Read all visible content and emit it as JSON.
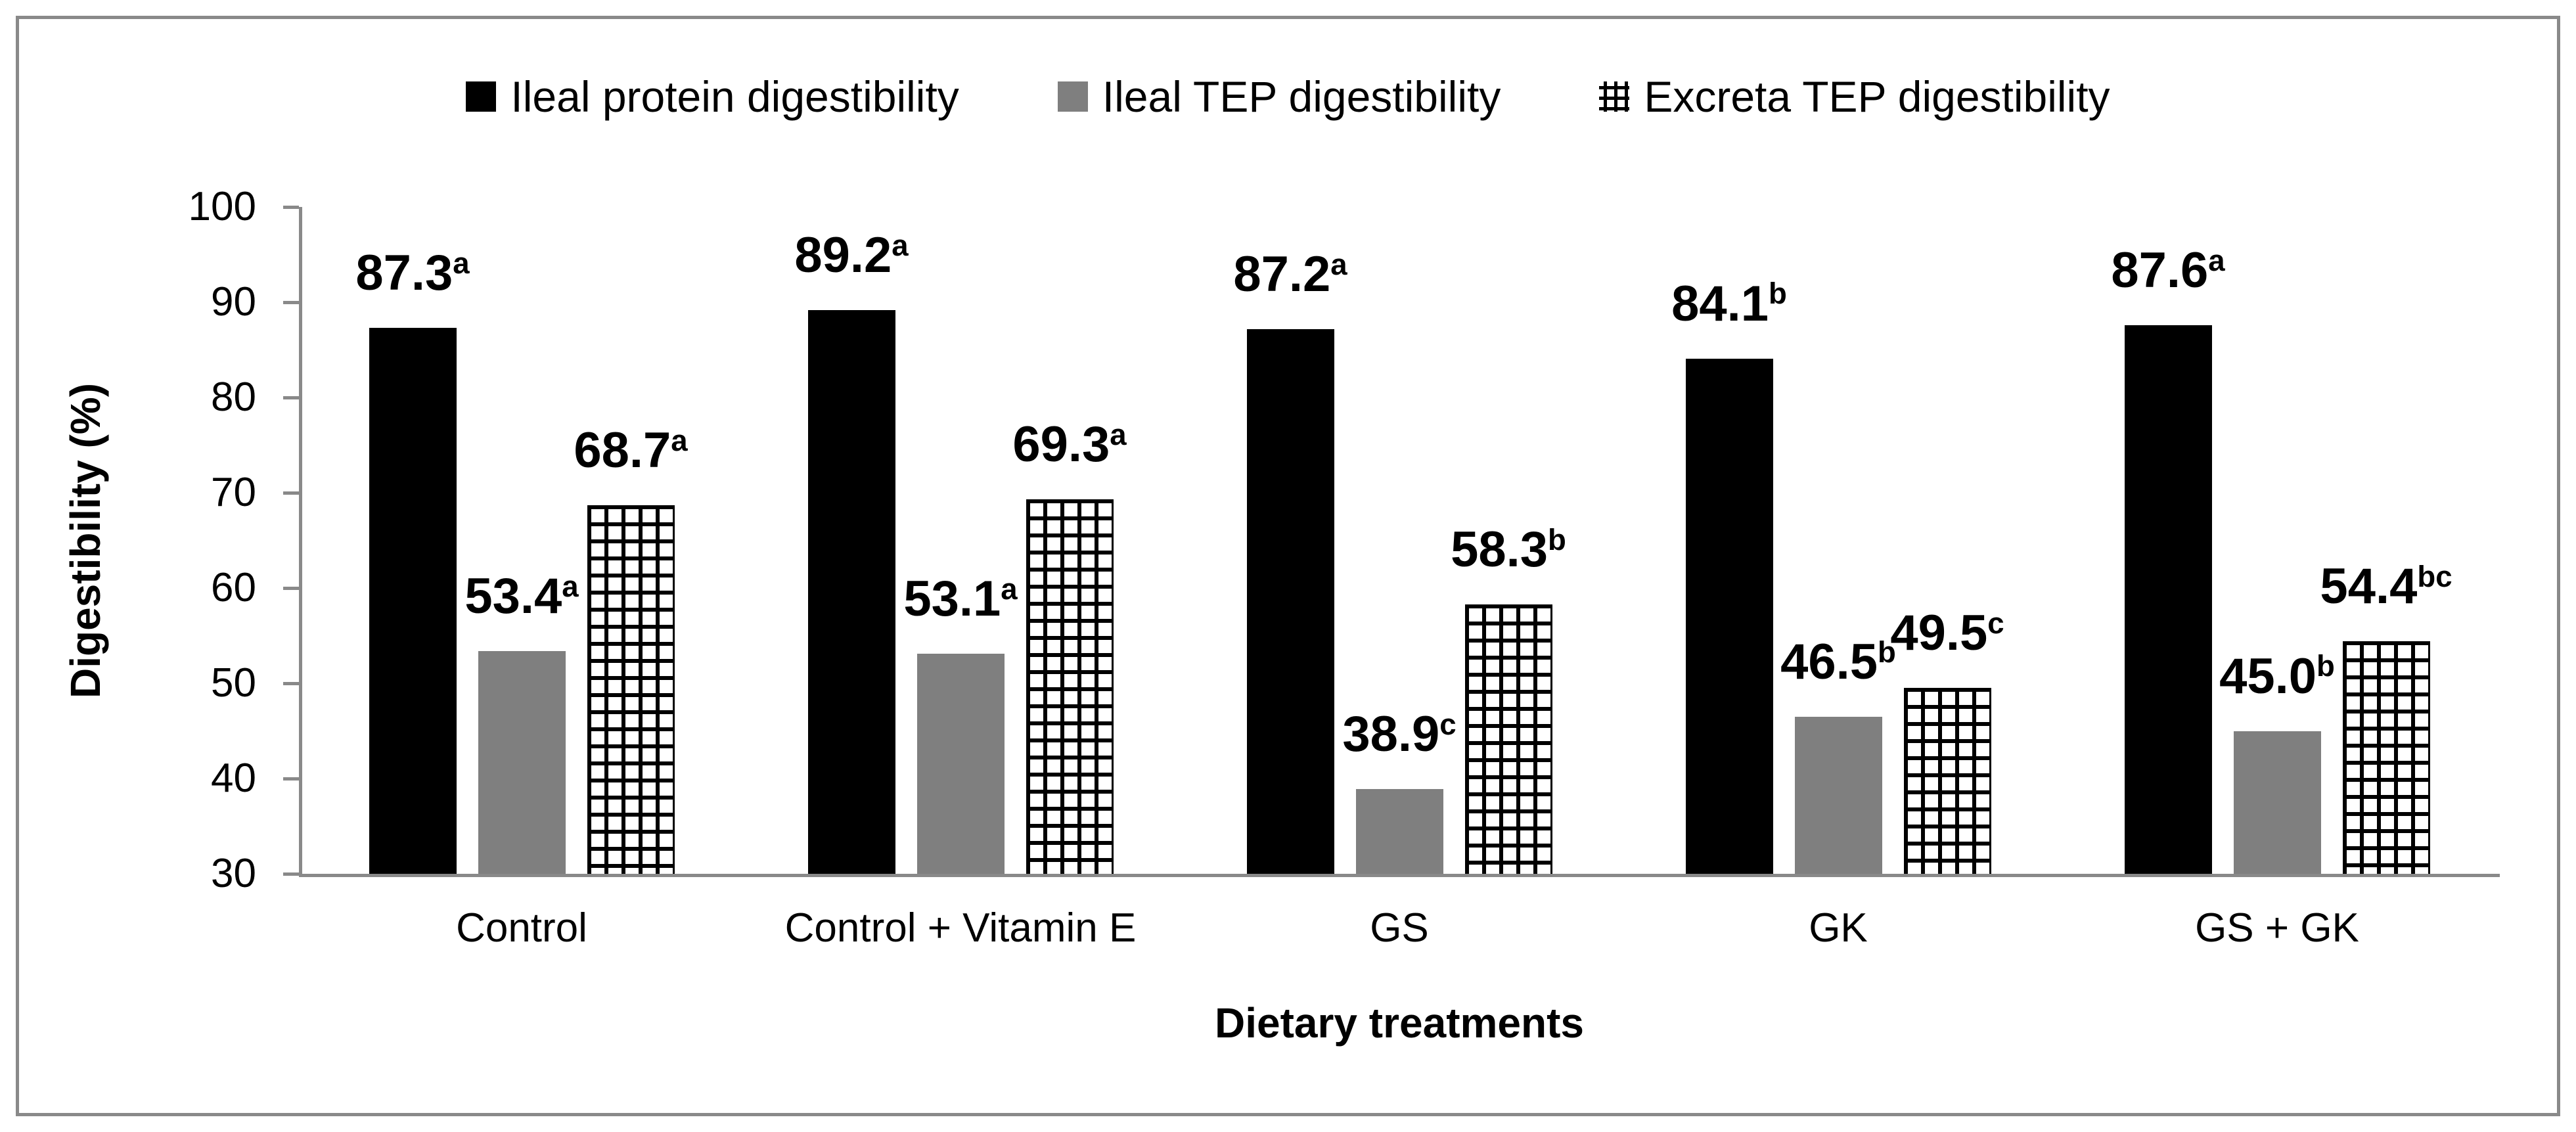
{
  "figure": {
    "background_color": "#ffffff",
    "border_color": "#898989",
    "axis_color": "#898989"
  },
  "chart_data": {
    "type": "bar",
    "title": "",
    "xlabel": "Dietary treatments",
    "ylabel": "Digestibility (%)",
    "ylim": [
      30,
      100
    ],
    "ytick_step": 10,
    "yticks": [
      30,
      40,
      50,
      60,
      70,
      80,
      90,
      100
    ],
    "grid": false,
    "legend_position": "top-center",
    "categories": [
      "Control",
      "Control + Vitamin E",
      "GS",
      "GK",
      "GS + GK"
    ],
    "series": [
      {
        "name": "Ileal protein digestibility",
        "swatch": "black-filled-square",
        "pattern": "solid-black",
        "color": "#000000",
        "values": [
          87.3,
          89.2,
          87.2,
          84.1,
          87.6
        ],
        "labels": [
          {
            "value": "87.3",
            "sup": "a"
          },
          {
            "value": "89.2",
            "sup": "a"
          },
          {
            "value": "87.2",
            "sup": "a"
          },
          {
            "value": "84.1",
            "sup": "b"
          },
          {
            "value": "87.6",
            "sup": "a"
          }
        ]
      },
      {
        "name": "Ileal TEP digestibility",
        "swatch": "gray-filled-square",
        "pattern": "solid-gray",
        "color": "#7f7f7f",
        "values": [
          53.4,
          53.1,
          38.9,
          46.5,
          45.0
        ],
        "labels": [
          {
            "value": "53.4",
            "sup": "a"
          },
          {
            "value": "53.1",
            "sup": "a"
          },
          {
            "value": "38.9",
            "sup": "c"
          },
          {
            "value": "46.5",
            "sup": "b"
          },
          {
            "value": "45.0",
            "sup": "b"
          }
        ]
      },
      {
        "name": "Excreta TEP digestibility",
        "swatch": "crosshatch-square",
        "pattern": "crosshatch",
        "color": "#000000",
        "values": [
          68.7,
          69.3,
          58.3,
          49.5,
          54.4
        ],
        "labels": [
          {
            "value": "68.7",
            "sup": "a"
          },
          {
            "value": "69.3",
            "sup": "a"
          },
          {
            "value": "58.3",
            "sup": "b"
          },
          {
            "value": "49.5",
            "sup": "c"
          },
          {
            "value": "54.4",
            "sup": "bc"
          }
        ]
      }
    ]
  }
}
